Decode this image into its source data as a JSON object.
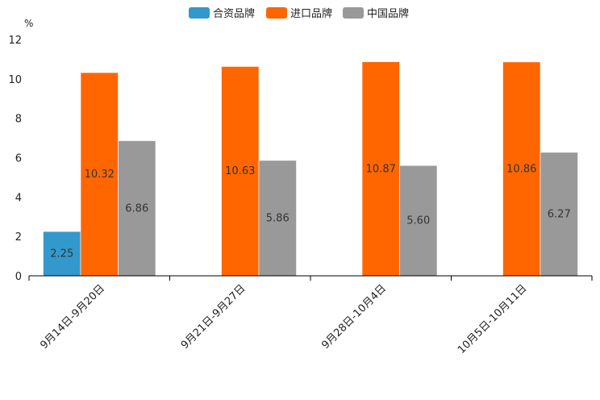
{
  "chart_data": {
    "type": "bar",
    "title": "",
    "unit": "%",
    "xlabel": "",
    "ylabel": "",
    "ylim": [
      0,
      12
    ],
    "yticks": [
      0,
      2,
      4,
      6,
      8,
      10,
      12
    ],
    "legend_position": "top-center",
    "grid": false,
    "categories": [
      "9月14日-9月20日",
      "9月21日-9月27日",
      "9月28日-10月4日",
      "10月5日-10月11日"
    ],
    "series": [
      {
        "name": "合资品牌",
        "color": "#3399cc",
        "values": [
          2.25,
          null,
          null,
          null
        ],
        "labels": [
          "2.25",
          "",
          "",
          ""
        ]
      },
      {
        "name": "进口品牌",
        "color": "#ff6600",
        "values": [
          10.32,
          10.63,
          10.87,
          10.86
        ],
        "labels": [
          "10.32",
          "10.63",
          "10.87",
          "10.86"
        ]
      },
      {
        "name": "中国品牌",
        "color": "#999999",
        "values": [
          6.86,
          5.86,
          5.6,
          6.27
        ],
        "labels": [
          "6.86",
          "5.86",
          "5.60",
          "6.27"
        ]
      }
    ]
  }
}
